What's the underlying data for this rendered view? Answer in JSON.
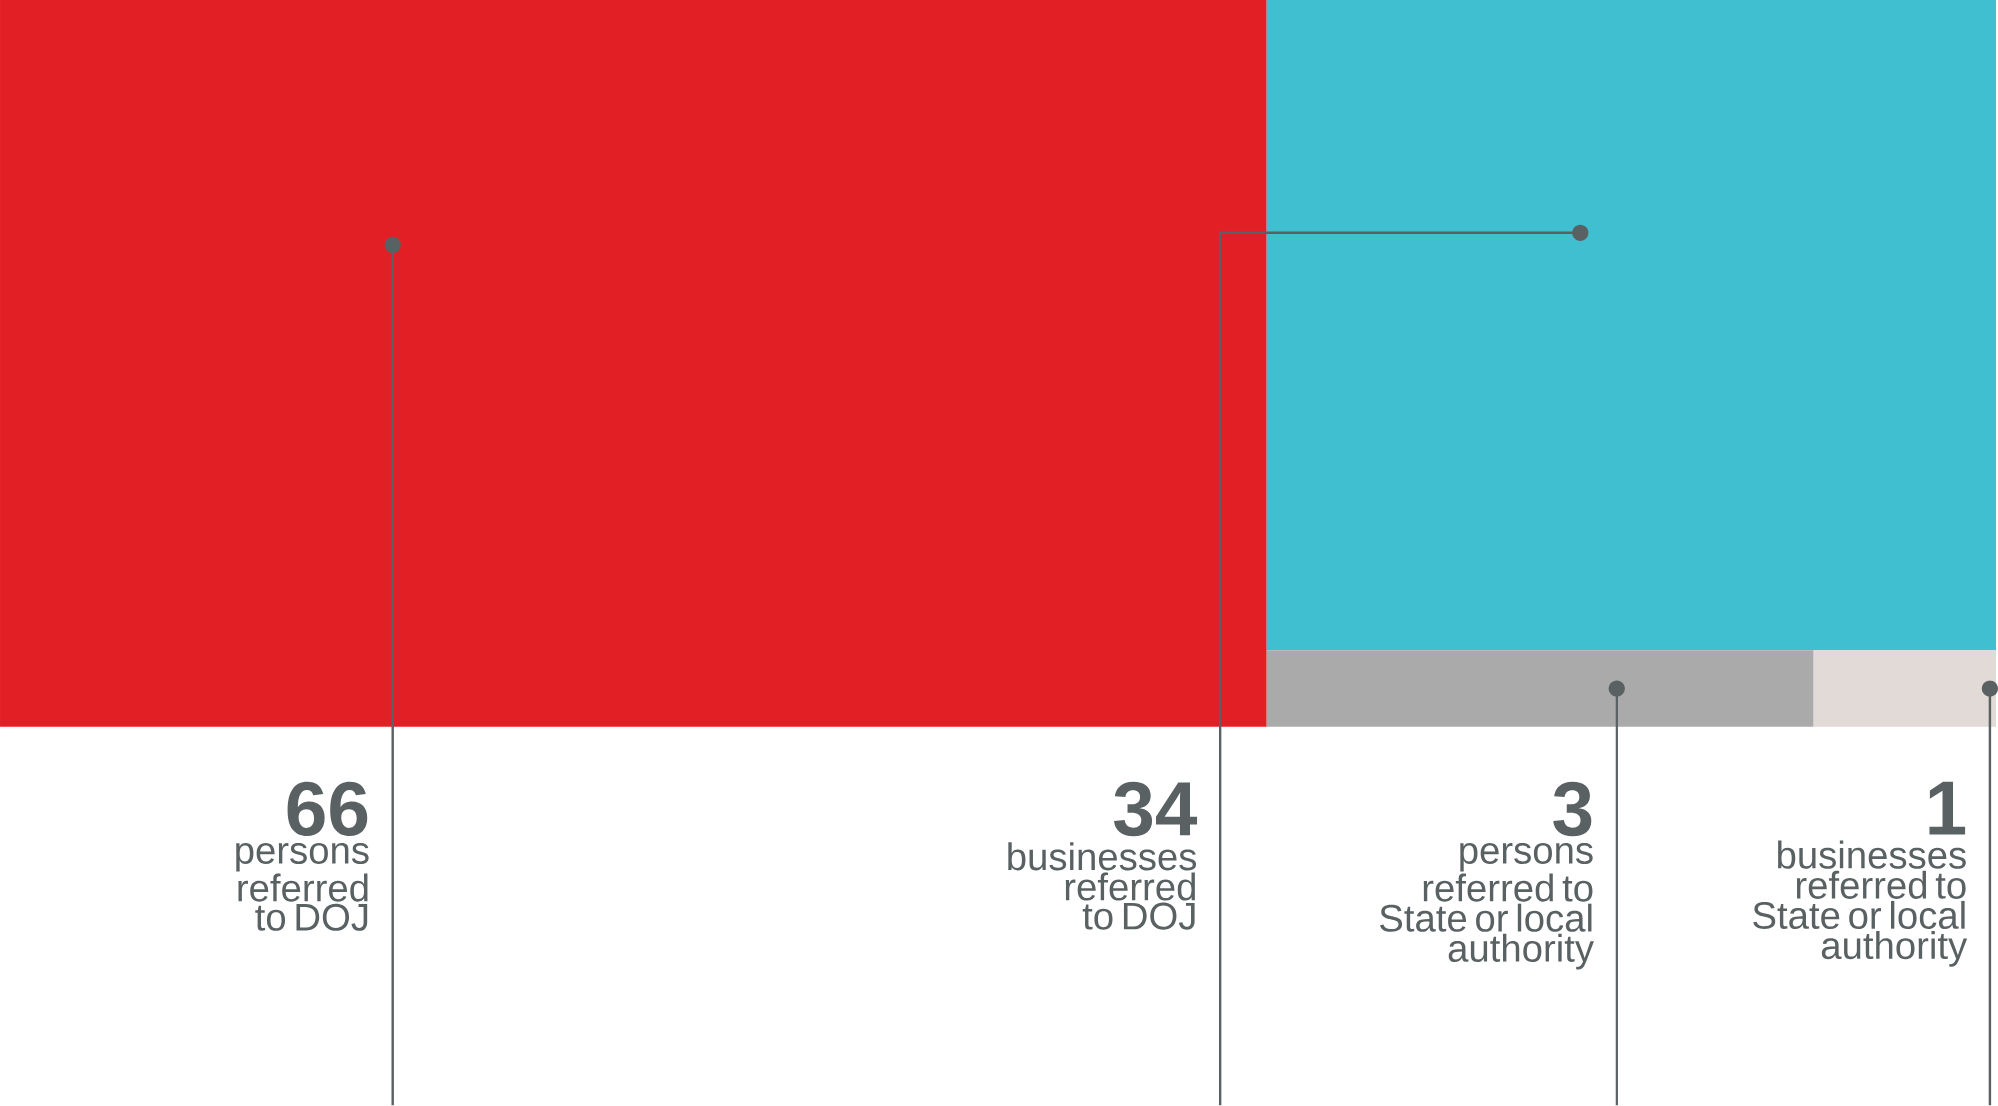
{
  "chart_data": {
    "type": "other",
    "categories": [
      "persons referred to DOJ",
      "businesses referred to DOJ",
      "persons referred to State or local authority",
      "businesses referred to State or local authority"
    ],
    "values": [
      66,
      34,
      3,
      1
    ],
    "colors": [
      "#e31f26",
      "#40bfd0",
      "#aaaaaa",
      "#e2dad6"
    ],
    "data_labels": true
  }
}
